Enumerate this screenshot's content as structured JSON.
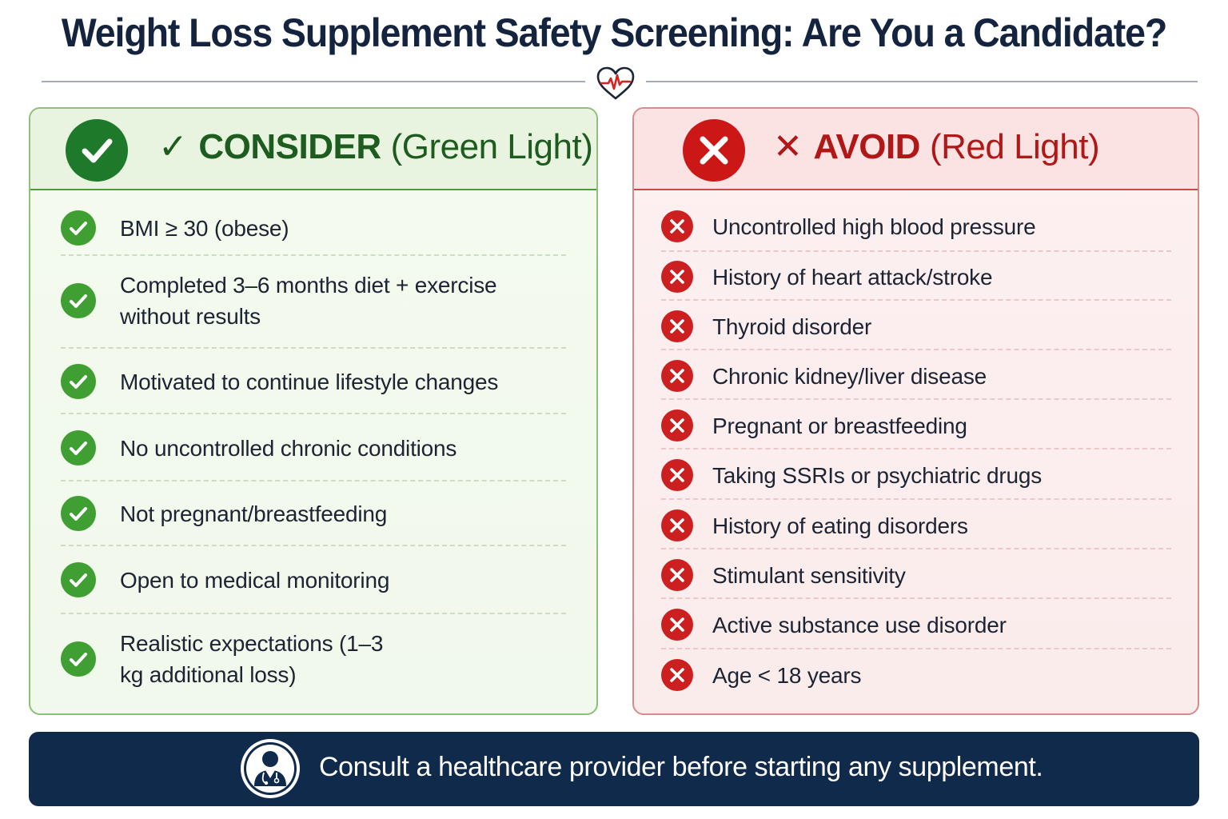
{
  "title": "Weight Loss Supplement Safety Screening: Are You a Candidate?",
  "icons": {
    "divider": "heart-pulse-icon",
    "consider": "check-icon",
    "avoid": "x-icon",
    "footer": "doctor-icon"
  },
  "colors": {
    "consider_accent": "#1e7a2a",
    "avoid_accent": "#cc1717",
    "footer_bg": "#102a4c"
  },
  "consider": {
    "glyph": "✓",
    "label": "CONSIDER",
    "sub": "(Green Light)",
    "items": [
      "BMI ≥ 30 (obese)",
      "Completed 3–6 months diet + exercise without results",
      "Motivated to continue lifestyle changes",
      "No uncontrolled chronic conditions",
      "Not pregnant/breastfeeding",
      "Open to medical monitoring",
      "Realistic expectations (1–3 kg additional loss)"
    ]
  },
  "avoid": {
    "glyph": "✕",
    "label": "AVOID",
    "sub": "(Red Light)",
    "items": [
      "Uncontrolled high blood pressure",
      "History of heart attack/stroke",
      "Thyroid disorder",
      "Chronic kidney/liver disease",
      "Pregnant or breastfeeding",
      "Taking SSRIs or psychiatric drugs",
      "History of eating disorders",
      "Stimulant sensitivity",
      "Active substance use disorder",
      "Age < 18 years"
    ]
  },
  "footer": {
    "text": "Consult a healthcare provider before starting any supplement."
  }
}
